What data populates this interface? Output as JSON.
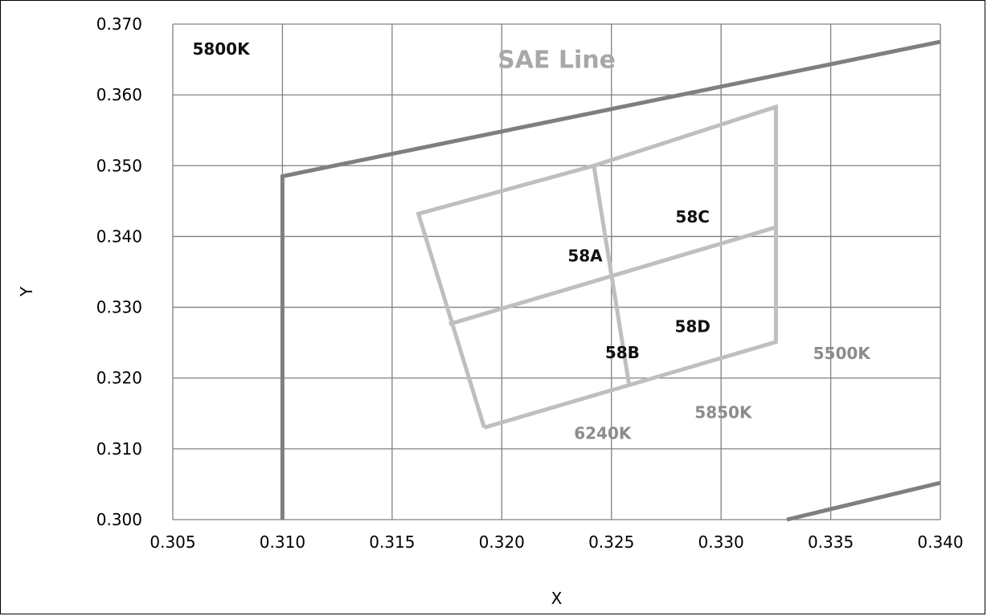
{
  "chart_data": {
    "type": "line",
    "xlabel": "X",
    "ylabel": "Y",
    "xlim": [
      0.305,
      0.34
    ],
    "ylim": [
      0.3,
      0.37
    ],
    "x_ticks": [
      "0.305",
      "0.310",
      "0.315",
      "0.320",
      "0.325",
      "0.330",
      "0.335",
      "0.340"
    ],
    "y_ticks": [
      "0.300",
      "0.310",
      "0.320",
      "0.330",
      "0.340",
      "0.350",
      "0.360",
      "0.370"
    ],
    "grid": true,
    "colors": {
      "boundary": "#7f7f7f",
      "bins": "#bfbfbf",
      "grid": "#808080"
    },
    "series": [
      {
        "role": "boundary",
        "points": [
          [
            0.31,
            0.3
          ],
          [
            0.31,
            0.3485
          ],
          [
            0.34,
            0.3675
          ]
        ]
      },
      {
        "role": "boundary",
        "points": [
          [
            0.333,
            0.3
          ],
          [
            0.34,
            0.3052
          ]
        ]
      },
      {
        "role": "bins",
        "points": [
          [
            0.3192,
            0.313
          ],
          [
            0.3162,
            0.3432
          ],
          [
            0.3242,
            0.35
          ],
          [
            0.3325,
            0.3583
          ],
          [
            0.3325,
            0.3251
          ],
          [
            0.3192,
            0.313
          ]
        ]
      },
      {
        "role": "bins",
        "points": [
          [
            0.3242,
            0.35
          ],
          [
            0.3258,
            0.3192
          ]
        ]
      },
      {
        "role": "bins",
        "points": [
          [
            0.3176,
            0.3276
          ],
          [
            0.3325,
            0.3413
          ]
        ]
      }
    ],
    "annotations": [
      {
        "text": "5800K",
        "x": 0.3072,
        "y": 0.3663,
        "style": "dark"
      },
      {
        "text": "SAE Line",
        "x": 0.3225,
        "y": 0.3648,
        "style": "sae"
      },
      {
        "text": "58A",
        "x": 0.3238,
        "y": 0.3371,
        "style": "dark"
      },
      {
        "text": "58B",
        "x": 0.3255,
        "y": 0.3234,
        "style": "dark"
      },
      {
        "text": "58C",
        "x": 0.3287,
        "y": 0.3426,
        "style": "dark"
      },
      {
        "text": "58D",
        "x": 0.3287,
        "y": 0.3271,
        "style": "dark"
      },
      {
        "text": "5500K",
        "x": 0.3355,
        "y": 0.3233,
        "style": "gray"
      },
      {
        "text": "5850K",
        "x": 0.3301,
        "y": 0.315,
        "style": "gray"
      },
      {
        "text": "6240K",
        "x": 0.3246,
        "y": 0.312,
        "style": "gray"
      }
    ]
  }
}
